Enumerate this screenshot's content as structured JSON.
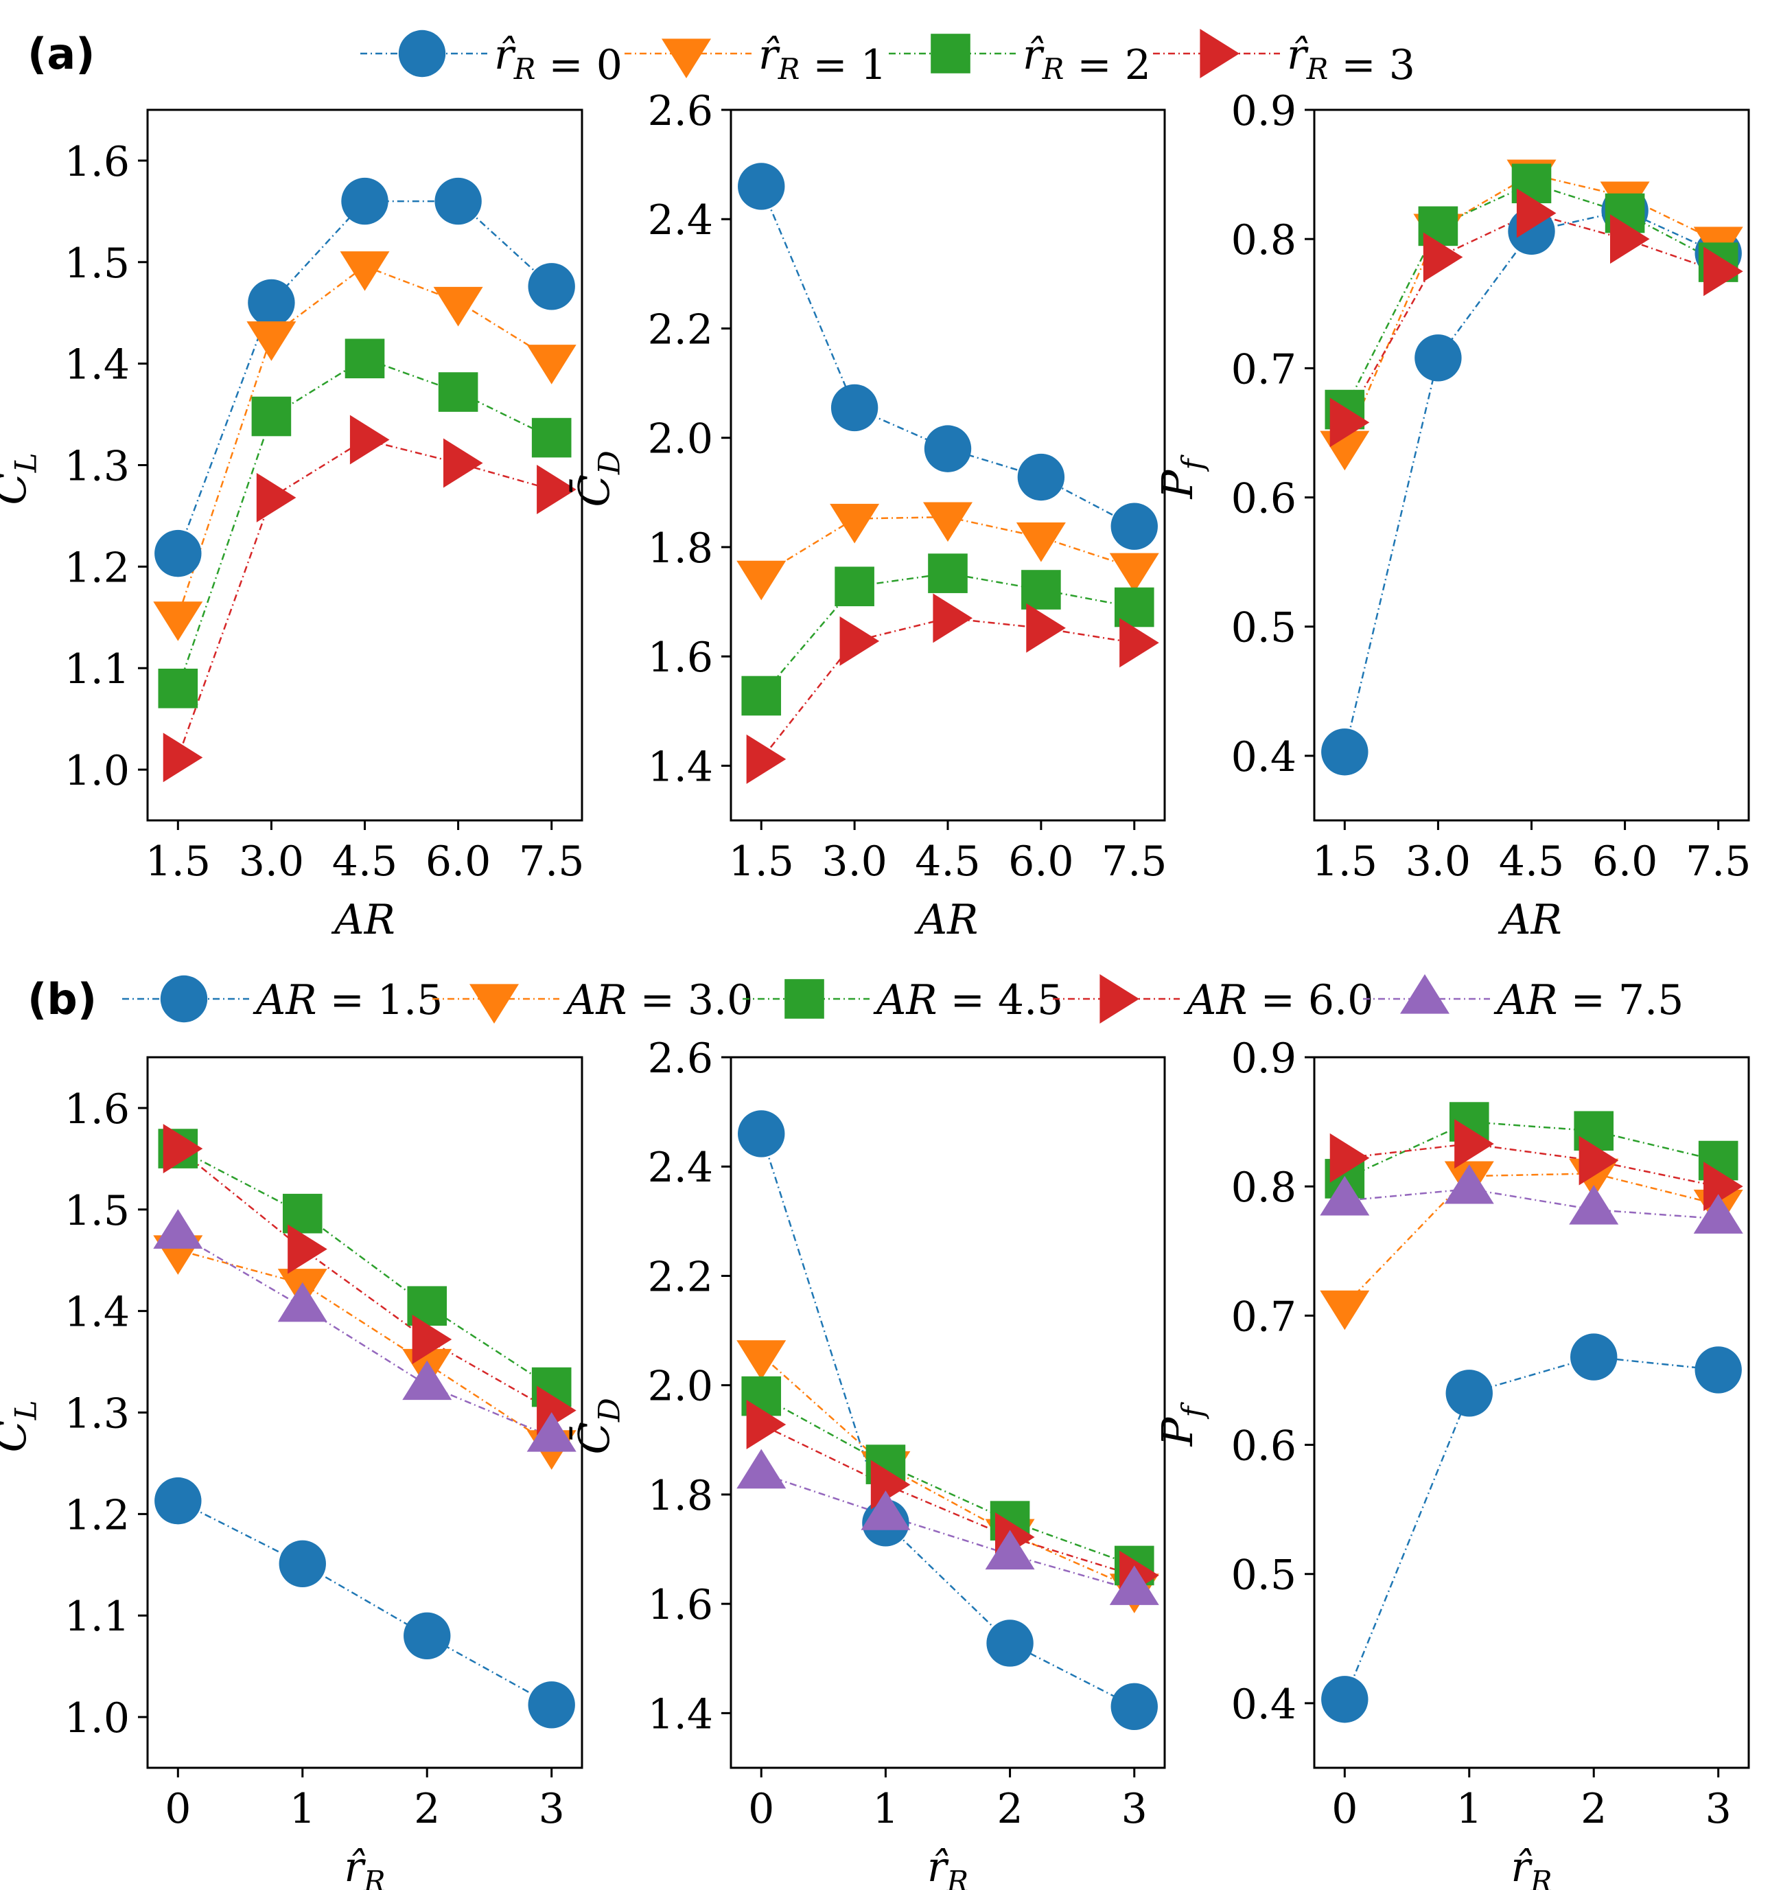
{
  "panels": [
    {
      "label": "(a)",
      "legend": [
        "r̂R = 0",
        "r̂R = 1",
        "r̂R = 2",
        "r̂R = 3"
      ],
      "xlabel": "AR"
    },
    {
      "label": "(b)",
      "legend": [
        "AR = 1.5",
        "AR = 3.0",
        "AR = 4.5",
        "AR = 6.0",
        "AR = 7.5"
      ],
      "xlabel": "r̂R"
    }
  ],
  "colors": [
    "#1f77b4",
    "#ff7f0e",
    "#2ca02c",
    "#d62728",
    "#9467bd"
  ],
  "markers": [
    "circle",
    "triangle-down",
    "square",
    "triangle-right",
    "triangle-up"
  ],
  "chart_data": [
    {
      "type": "line",
      "panel": "(a)",
      "ylabel": "C̄L",
      "xlabel": "AR",
      "categories": [
        "1.5",
        "3.0",
        "4.5",
        "6.0",
        "7.5"
      ],
      "ylim": [
        0.95,
        1.65
      ],
      "yticks": [
        "1.0",
        "1.1",
        "1.2",
        "1.3",
        "1.4",
        "1.5",
        "1.6"
      ],
      "series": [
        {
          "name": "r̂R = 0",
          "values": [
            1.213,
            1.46,
            1.56,
            1.56,
            1.476
          ]
        },
        {
          "name": "r̂R = 1",
          "values": [
            1.151,
            1.427,
            1.496,
            1.461,
            1.404
          ]
        },
        {
          "name": "r̂R = 2",
          "values": [
            1.08,
            1.348,
            1.405,
            1.372,
            1.327
          ]
        },
        {
          "name": "r̂R = 3",
          "values": [
            1.012,
            1.268,
            1.325,
            1.302,
            1.276
          ]
        }
      ]
    },
    {
      "type": "line",
      "panel": "(a)",
      "ylabel": "C̄D",
      "xlabel": "AR",
      "categories": [
        "1.5",
        "3.0",
        "4.5",
        "6.0",
        "7.5"
      ],
      "ylim": [
        1.3,
        2.6
      ],
      "yticks": [
        "1.4",
        "1.6",
        "1.8",
        "2.0",
        "2.2",
        "2.4",
        "2.6"
      ],
      "series": [
        {
          "name": "r̂R = 0",
          "values": [
            2.46,
            2.055,
            1.98,
            1.928,
            1.838
          ]
        },
        {
          "name": "r̂R = 1",
          "values": [
            1.748,
            1.852,
            1.855,
            1.818,
            1.762
          ]
        },
        {
          "name": "r̂R = 2",
          "values": [
            1.528,
            1.728,
            1.752,
            1.722,
            1.69
          ]
        },
        {
          "name": "r̂R = 3",
          "values": [
            1.412,
            1.628,
            1.67,
            1.652,
            1.625
          ]
        }
      ]
    },
    {
      "type": "line",
      "panel": "(a)",
      "ylabel": "Pf",
      "xlabel": "AR",
      "categories": [
        "1.5",
        "3.0",
        "4.5",
        "6.0",
        "7.5"
      ],
      "ylim": [
        0.35,
        0.9
      ],
      "yticks": [
        "0.4",
        "0.5",
        "0.6",
        "0.7",
        "0.8",
        "0.9"
      ],
      "series": [
        {
          "name": "r̂R = 0",
          "values": [
            0.403,
            0.708,
            0.806,
            0.822,
            0.789
          ]
        },
        {
          "name": "r̂R = 1",
          "values": [
            0.64,
            0.808,
            0.85,
            0.833,
            0.798
          ]
        },
        {
          "name": "r̂R = 2",
          "values": [
            0.668,
            0.81,
            0.843,
            0.82,
            0.782
          ]
        },
        {
          "name": "r̂R = 3",
          "values": [
            0.658,
            0.786,
            0.82,
            0.8,
            0.775
          ]
        }
      ]
    },
    {
      "type": "line",
      "panel": "(b)",
      "ylabel": "C̄L",
      "xlabel": "r̂R",
      "categories": [
        "0",
        "1",
        "2",
        "3"
      ],
      "ylim": [
        0.95,
        1.65
      ],
      "yticks": [
        "1.0",
        "1.1",
        "1.2",
        "1.3",
        "1.4",
        "1.5",
        "1.6"
      ],
      "series": [
        {
          "name": "AR = 1.5",
          "values": [
            1.213,
            1.151,
            1.08,
            1.012
          ]
        },
        {
          "name": "AR = 3.0",
          "values": [
            1.46,
            1.427,
            1.348,
            1.268
          ]
        },
        {
          "name": "AR = 4.5",
          "values": [
            1.56,
            1.496,
            1.405,
            1.325
          ]
        },
        {
          "name": "AR = 6.0",
          "values": [
            1.56,
            1.461,
            1.372,
            1.302
          ]
        },
        {
          "name": "AR = 7.5",
          "values": [
            1.476,
            1.404,
            1.327,
            1.276
          ]
        }
      ]
    },
    {
      "type": "line",
      "panel": "(b)",
      "ylabel": "C̄D",
      "xlabel": "r̂R",
      "categories": [
        "0",
        "1",
        "2",
        "3"
      ],
      "ylim": [
        1.3,
        2.6
      ],
      "yticks": [
        "1.4",
        "1.6",
        "1.8",
        "2.0",
        "2.2",
        "2.4",
        "2.6"
      ],
      "series": [
        {
          "name": "AR = 1.5",
          "values": [
            2.46,
            1.748,
            1.528,
            1.412
          ]
        },
        {
          "name": "AR = 3.0",
          "values": [
            2.055,
            1.852,
            1.728,
            1.628
          ]
        },
        {
          "name": "AR = 4.5",
          "values": [
            1.98,
            1.855,
            1.752,
            1.67
          ]
        },
        {
          "name": "AR = 6.0",
          "values": [
            1.928,
            1.818,
            1.722,
            1.652
          ]
        },
        {
          "name": "AR = 7.5",
          "values": [
            1.838,
            1.762,
            1.69,
            1.625
          ]
        }
      ]
    },
    {
      "type": "line",
      "panel": "(b)",
      "ylabel": "Pf",
      "xlabel": "r̂R",
      "categories": [
        "0",
        "1",
        "2",
        "3"
      ],
      "ylim": [
        0.35,
        0.9
      ],
      "yticks": [
        "0.4",
        "0.5",
        "0.6",
        "0.7",
        "0.8",
        "0.9"
      ],
      "series": [
        {
          "name": "AR = 1.5",
          "values": [
            0.403,
            0.64,
            0.668,
            0.658
          ]
        },
        {
          "name": "AR = 3.0",
          "values": [
            0.708,
            0.808,
            0.81,
            0.786
          ]
        },
        {
          "name": "AR = 4.5",
          "values": [
            0.806,
            0.85,
            0.843,
            0.82
          ]
        },
        {
          "name": "AR = 6.0",
          "values": [
            0.822,
            0.833,
            0.82,
            0.8
          ]
        },
        {
          "name": "AR = 7.5",
          "values": [
            0.789,
            0.798,
            0.782,
            0.775
          ]
        }
      ]
    }
  ]
}
